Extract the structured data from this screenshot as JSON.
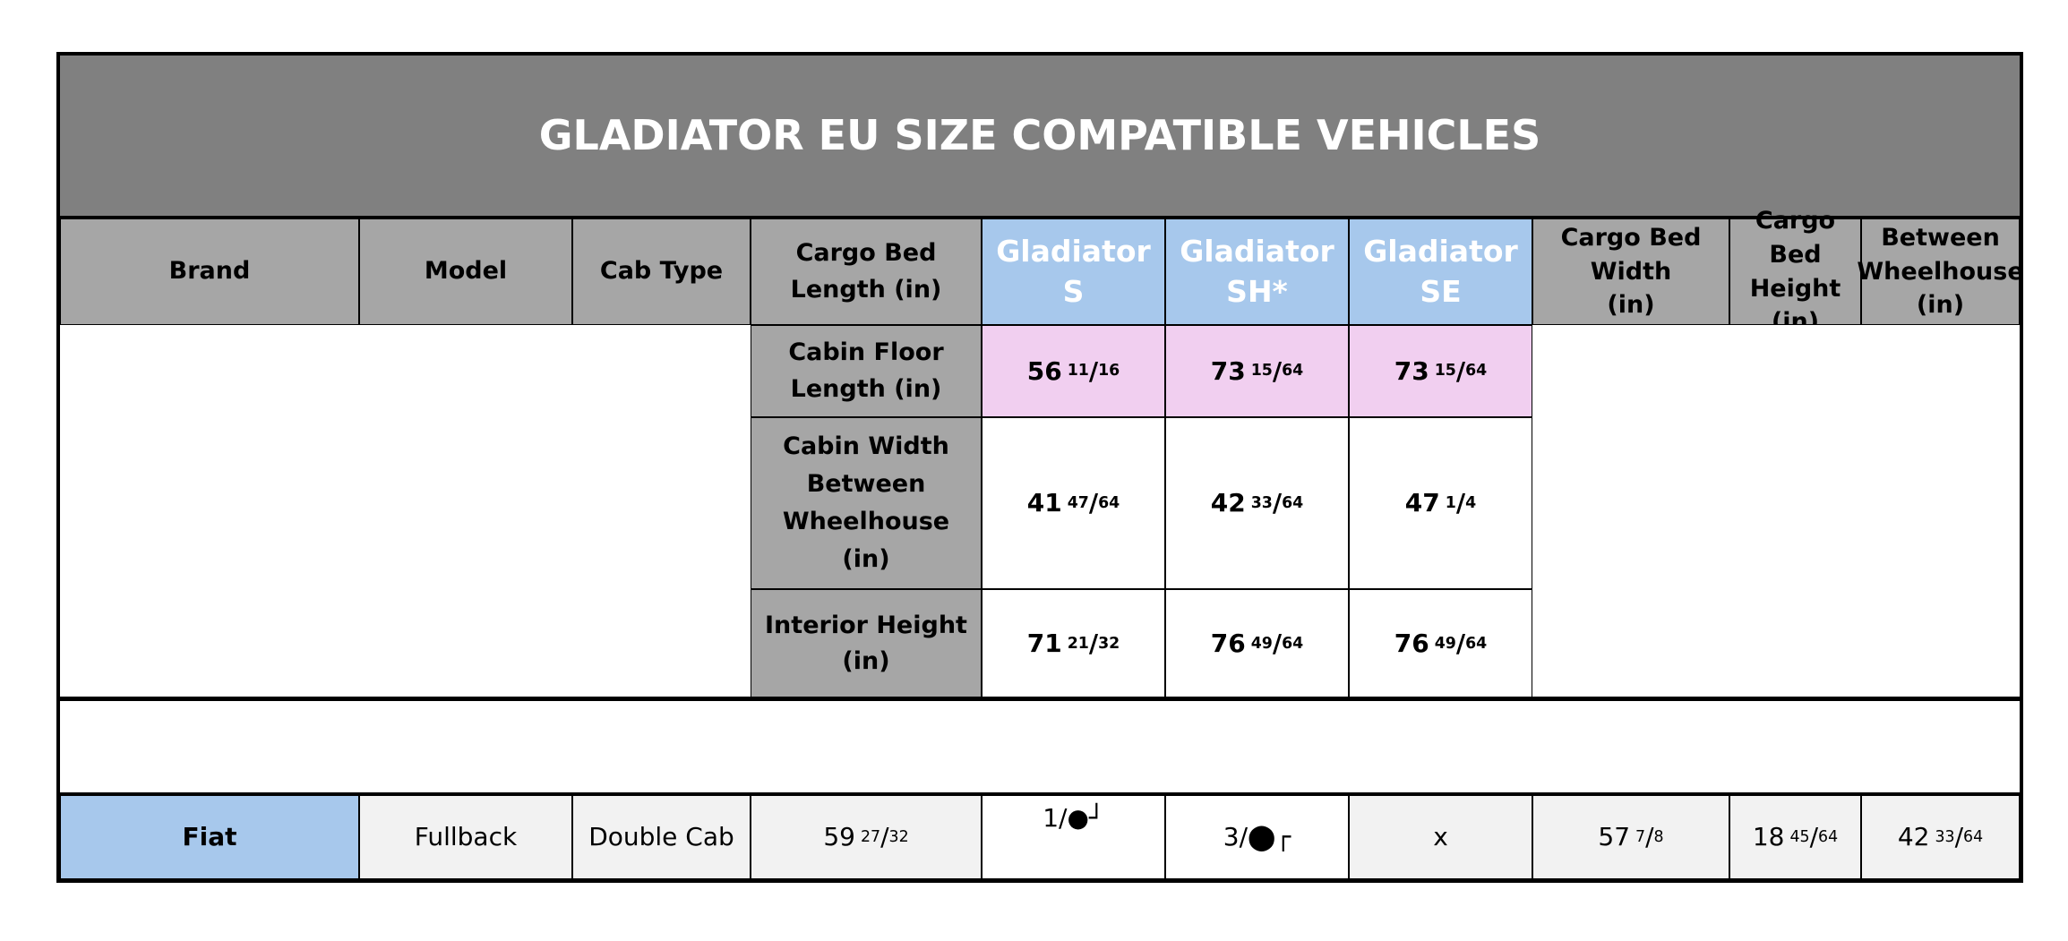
{
  "title": "GLADIATOR EU SIZE COMPATIBLE VEHICLES",
  "header": {
    "brand": "Brand",
    "model": "Model",
    "cab_type": "Cab Type",
    "cargo_bed_length_1": "Cargo Bed",
    "cargo_bed_length_2": "Length (in)",
    "gladiator_s_1": "Gladiator",
    "gladiator_s_2": "S",
    "gladiator_sh_1": "Gladiator",
    "gladiator_sh_2": "SH*",
    "gladiator_se_1": "Gladiator",
    "gladiator_se_2": "SE",
    "cargo_bed_width_1": "Cargo Bed",
    "cargo_bed_width_2": "Width",
    "cargo_bed_width_3": "(in)",
    "cargo_bed_height_1": "Cargo Bed",
    "cargo_bed_height_2": "Height",
    "cargo_bed_height_3": "(in)",
    "between_wheelhouse_1": "Between",
    "between_wheelhouse_2": "Wheelhouse",
    "between_wheelhouse_3": "(in)"
  },
  "specs": [
    {
      "label": [
        "Cabin Floor",
        "Length (in)"
      ],
      "values": [
        {
          "w": "56",
          "n": "11",
          "d": "16"
        },
        {
          "w": "73",
          "n": "15",
          "d": "64"
        },
        {
          "w": "73",
          "n": "15",
          "d": "64"
        }
      ]
    },
    {
      "label": [
        "Cabin Width",
        "Between",
        "Wheelhouse",
        "(in)"
      ],
      "values": [
        {
          "w": "41",
          "n": "47",
          "d": "64"
        },
        {
          "w": "42",
          "n": "33",
          "d": "64"
        },
        {
          "w": "47",
          "n": "1",
          "d": "4"
        }
      ]
    },
    {
      "label": [
        "Interior Height",
        "(in)"
      ],
      "values": [
        {
          "w": "71",
          "n": "21",
          "d": "32"
        },
        {
          "w": "76",
          "n": "49",
          "d": "64"
        },
        {
          "w": "76",
          "n": "49",
          "d": "64"
        }
      ]
    }
  ],
  "vehicles": [
    {
      "brand": "Fiat",
      "model": "Fullback",
      "cab_type": "Double Cab",
      "cargo_bed_length": {
        "w": "59",
        "n": "27",
        "d": "32"
      },
      "gladiator_s": "1/●┘",
      "gladiator_sh": "3/⬤┌",
      "gladiator_se": "x",
      "cargo_bed_width": {
        "w": "57",
        "n": "7",
        "d": "8"
      },
      "cargo_bed_height": {
        "w": "18",
        "n": "45",
        "d": "64"
      },
      "between_wheelhouse": {
        "w": "42",
        "n": "33",
        "d": "64"
      }
    }
  ]
}
